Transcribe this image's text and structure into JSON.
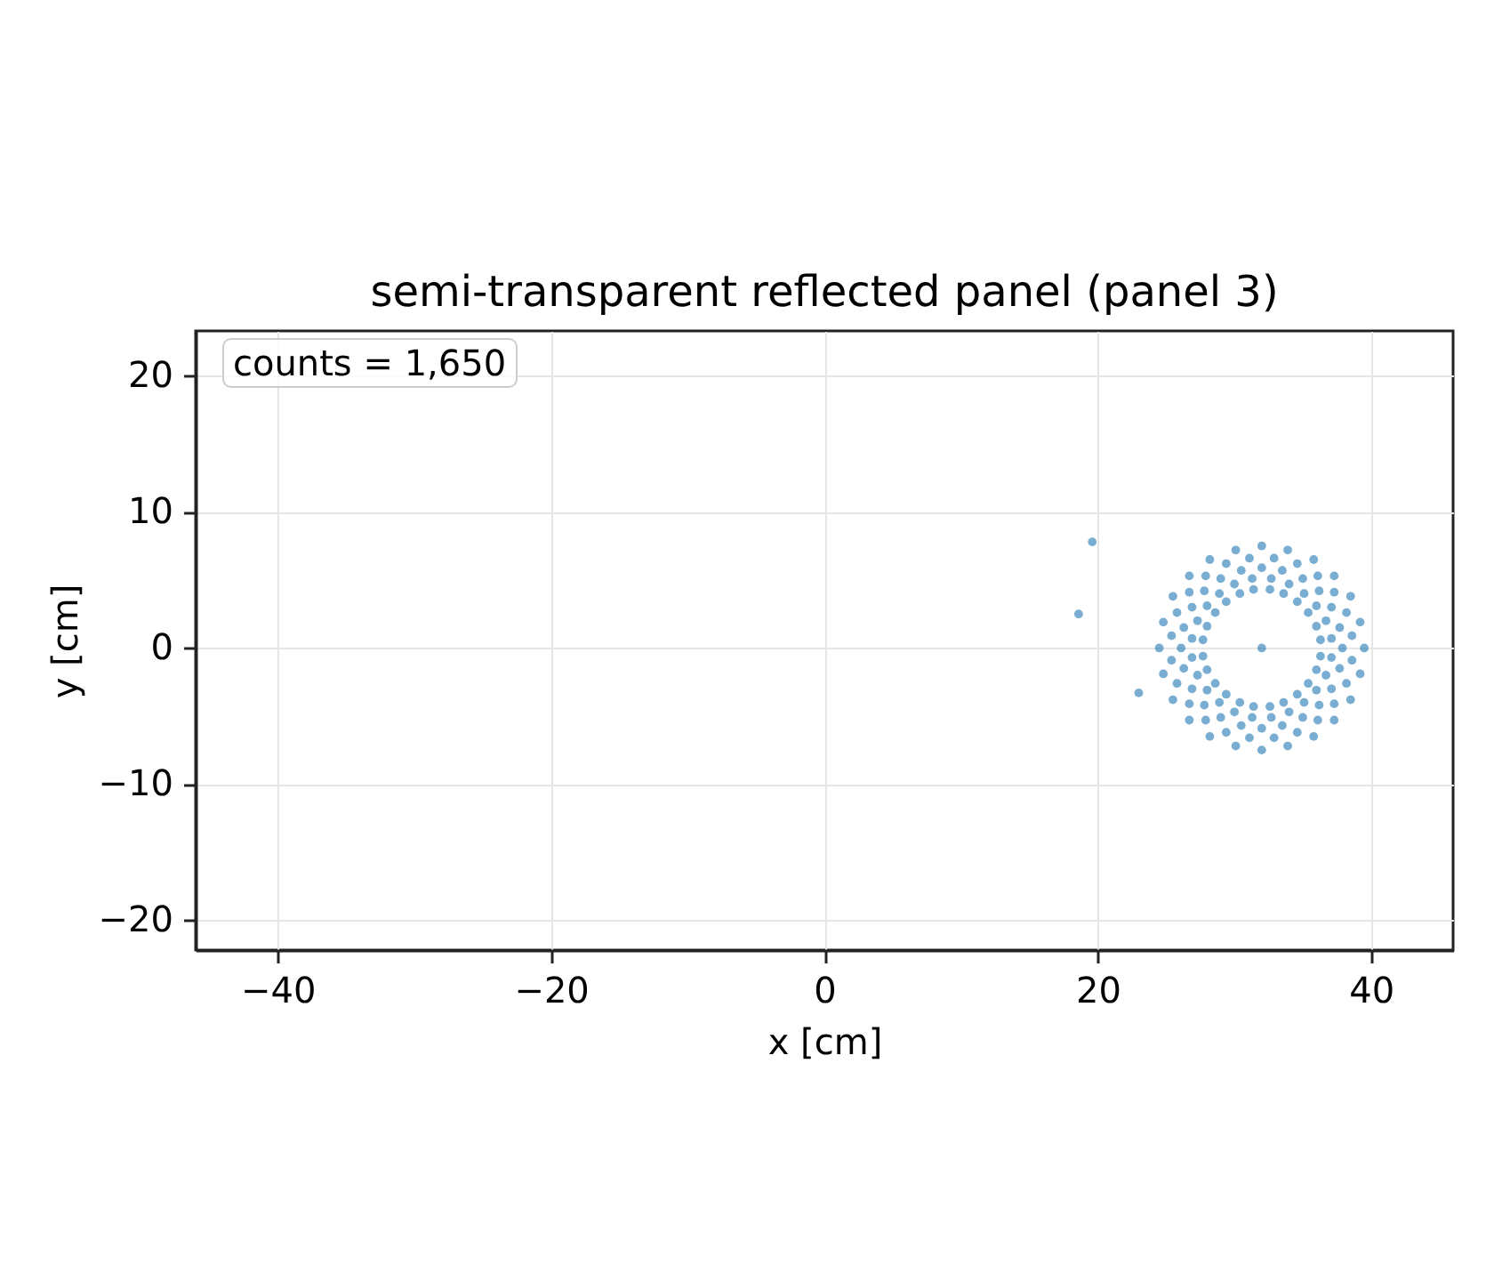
{
  "chart_data": {
    "type": "scatter",
    "title": "semi-transparent reflected panel (panel 3)",
    "xlabel": "x [cm]",
    "ylabel": "y [cm]",
    "annotations": [
      "counts = 1,650"
    ],
    "xlim": [
      -46,
      46
    ],
    "ylim": [
      -22.2,
      23.3
    ],
    "xticks": [
      -40,
      -20,
      0,
      20,
      40
    ],
    "yticks": [
      -20,
      -10,
      0,
      10,
      20
    ],
    "grid": true,
    "marker": "circle",
    "series": [
      {
        "color": "#1f77b4",
        "x": [
          39.5,
          39.2,
          38.5,
          37.3,
          35.8,
          33.9,
          32.0,
          30.1,
          28.2,
          26.7,
          25.5,
          24.8,
          24.5,
          24.8,
          25.5,
          26.7,
          28.2,
          30.1,
          32.0,
          33.9,
          35.8,
          37.3,
          38.5,
          39.2,
          36.3,
          36.0,
          35.4,
          34.6,
          33.6,
          32.6,
          31.4,
          30.4,
          29.4,
          28.6,
          28.0,
          27.7,
          27.7,
          28.0,
          28.6,
          29.4,
          30.4,
          31.4,
          32.6,
          33.6,
          34.6,
          35.4,
          36.0,
          36.3,
          37.9,
          37.7,
          37.1,
          36.2,
          35.0,
          33.5,
          32.0,
          30.5,
          29.0,
          27.8,
          26.9,
          26.3,
          26.1,
          26.3,
          26.9,
          27.8,
          29.0,
          30.5,
          32.0,
          33.5,
          35.0,
          36.2,
          37.1,
          37.7,
          38.6,
          38.2,
          37.3,
          36.1,
          34.6,
          32.9,
          31.1,
          29.4,
          27.9,
          26.7,
          25.8,
          25.4,
          25.4,
          25.8,
          26.7,
          27.9,
          29.4,
          31.1,
          32.9,
          34.6,
          36.1,
          37.3,
          38.2,
          38.6,
          37.1,
          36.7,
          36.0,
          35.1,
          34.0,
          32.7,
          31.3,
          30.0,
          28.9,
          28.0,
          27.3,
          26.9,
          26.9,
          27.3,
          28.0,
          28.9,
          30.0,
          31.3,
          32.7,
          34.0,
          35.1,
          36.0,
          36.7,
          37.1,
          19.6,
          18.6,
          23.0,
          32.0
        ],
        "values": [
          0,
          1.9,
          3.8,
          5.3,
          6.5,
          7.2,
          7.5,
          7.2,
          6.5,
          5.3,
          3.8,
          1.9,
          0,
          -1.9,
          -3.8,
          -5.3,
          -6.5,
          -7.2,
          -7.5,
          -7.2,
          -6.5,
          -5.3,
          -3.8,
          -1.9,
          0.6,
          1.6,
          2.6,
          3.4,
          4.0,
          4.3,
          4.3,
          4.0,
          3.4,
          2.6,
          1.6,
          0.6,
          -0.6,
          -1.6,
          -2.6,
          -3.4,
          -4.0,
          -4.3,
          -4.3,
          -4.0,
          -3.4,
          -2.6,
          -1.6,
          -0.6,
          0,
          1.5,
          3.0,
          4.2,
          5.1,
          5.7,
          5.9,
          5.7,
          5.1,
          4.2,
          3.0,
          1.5,
          0,
          -1.5,
          -3.0,
          -4.2,
          -5.1,
          -5.7,
          -5.9,
          -5.7,
          -5.1,
          -4.2,
          -3.0,
          -1.5,
          0.9,
          2.6,
          4.1,
          5.3,
          6.2,
          6.6,
          6.6,
          6.2,
          5.3,
          4.1,
          2.6,
          0.9,
          -0.9,
          -2.6,
          -4.1,
          -5.3,
          -6.2,
          -6.6,
          -6.6,
          -6.2,
          -5.3,
          -4.1,
          -2.6,
          -0.9,
          0.7,
          2.0,
          3.1,
          4.0,
          4.7,
          5.1,
          5.1,
          4.7,
          4.0,
          3.1,
          2.0,
          0.7,
          -0.7,
          -2.0,
          -3.1,
          -4.0,
          -4.7,
          -5.1,
          -5.1,
          -4.7,
          -4.0,
          -3.1,
          -2.0,
          -0.7,
          7.8,
          2.5,
          -3.3,
          0.0
        ]
      }
    ]
  }
}
